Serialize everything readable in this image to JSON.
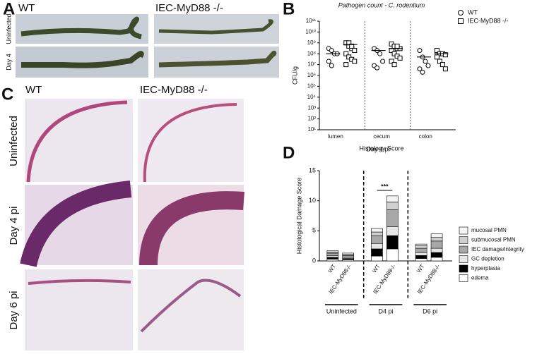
{
  "panels": {
    "A": {
      "letter": "A",
      "columns": [
        "WT",
        "IEC-MyD88 -/-"
      ],
      "rows": [
        "Uninfected",
        "Day 4"
      ]
    },
    "C": {
      "letter": "C",
      "columns": [
        "WT",
        "IEC-MyD88  -/-"
      ],
      "rows": [
        "Uninfected",
        "Day 4 pi",
        "Day 6 pi"
      ]
    },
    "B": {
      "letter": "B"
    },
    "D": {
      "letter": "D"
    }
  },
  "chart_data": [
    {
      "type": "scatter",
      "title": "Pathogen count - C. rodentium",
      "xlabel": "Day 4 pi",
      "ylabel": "CFU/g",
      "categories": [
        "lumen",
        "cecum",
        "colon"
      ],
      "log_scale": true,
      "ylim": [
        10,
        100000000000
      ],
      "yticks": [
        {
          "value": 10,
          "label": "10¹"
        },
        {
          "value": 100,
          "label": "10²"
        },
        {
          "value": 1000,
          "label": "10³"
        },
        {
          "value": 10000,
          "label": "10⁴"
        },
        {
          "value": 100000,
          "label": "10⁵"
        },
        {
          "value": 1000000,
          "label": "10⁶"
        },
        {
          "value": 10000000,
          "label": "10⁷"
        },
        {
          "value": 100000000,
          "label": "10⁸"
        },
        {
          "value": 1000000000,
          "label": "10⁹"
        },
        {
          "value": 10000000000,
          "label": "10¹⁰"
        },
        {
          "value": 100000000000,
          "label": "10¹¹"
        }
      ],
      "series": [
        {
          "name": "WT",
          "marker": "circle",
          "values": [
            [
              300000000,
              200000000,
              100000000,
              100000000,
              20000000,
              8000000
            ],
            [
              300000000,
              200000000,
              100000000,
              20000000,
              8000000,
              5000000
            ],
            [
              200000000,
              50000000,
              20000000,
              8000000,
              4000000,
              2000000
            ]
          ],
          "means": [
            100000000,
            200000000,
            50000000
          ]
        },
        {
          "name": "IEC-MyD88 -/-",
          "marker": "square",
          "values": [
            [
              1000000000,
              500000000,
              300000000,
              200000000,
              100000000,
              50000000,
              30000000,
              20000000,
              10000000,
              1000000000,
              500000000
            ],
            [
              800000000,
              500000000,
              300000000,
              300000000,
              200000000,
              100000000,
              60000000,
              40000000,
              20000000,
              10000000,
              500000000
            ],
            [
              200000000,
              100000000,
              100000000,
              80000000,
              50000000,
              20000000,
              10000000,
              4000000
            ]
          ],
          "means": [
            700000000,
            300000000,
            100000000
          ]
        }
      ]
    },
    {
      "type": "stacked_bar",
      "title": "Histology Score",
      "ylabel": "Histological Damage Score",
      "categories": [
        "WT",
        "IEC-MyD88-/-",
        "WT",
        "IEC-MyD88-/-",
        "WT",
        "IEC-MyD88-/-"
      ],
      "groups": [
        "Uninfected",
        "D4 pi",
        "D6 pi"
      ],
      "annotation": "***",
      "ylim": [
        0,
        15
      ],
      "yticks": [
        0,
        5,
        10,
        15
      ],
      "series": [
        {
          "name": "edema",
          "color": "#ffffff",
          "values": [
            0.3,
            0.2,
            0.8,
            2.0,
            0.4,
            0.6
          ]
        },
        {
          "name": "hyperplasia",
          "color": "#000000",
          "values": [
            0.3,
            0.2,
            1.2,
            2.2,
            0.5,
            0.8
          ]
        },
        {
          "name": "GC depletion",
          "color": "#e6e6e6",
          "values": [
            0.3,
            0.2,
            0.9,
            1.5,
            0.5,
            0.7
          ]
        },
        {
          "name": "IEC damage/integrity",
          "color": "#a8a8a8",
          "values": [
            0.4,
            0.3,
            1.3,
            2.8,
            0.7,
            1.2
          ]
        },
        {
          "name": "submucosal PMN",
          "color": "#d0d0d0",
          "values": [
            0.2,
            0.2,
            0.6,
            1.3,
            0.4,
            0.6
          ]
        },
        {
          "name": "mucosal PMN",
          "color": "#f4f4f4",
          "values": [
            0.2,
            0.2,
            0.6,
            1.0,
            0.3,
            0.6
          ]
        }
      ]
    }
  ]
}
